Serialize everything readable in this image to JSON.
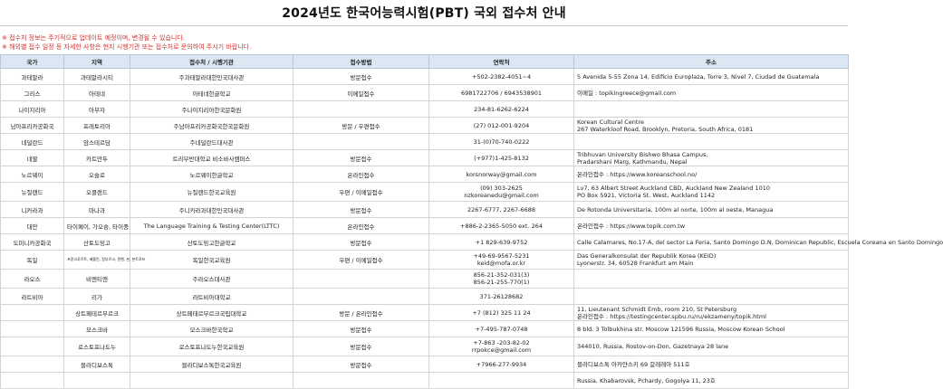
{
  "title": "2024년도 한국어능력시험(PBT) 국외 접수처 안내",
  "notes": [
    "※ 접수처 정보는 주기적으로 업데이트 예정이며, 변경될 수 있습니다.",
    "※ 해외별 접수 일정 등 자세한 사항은 현지 시행기관 또는 접수처로 문의하여 주시기 바랍니다."
  ],
  "columns": [
    "국가",
    "지역",
    "접수처 / 시행기관",
    "접수방법",
    "연락처",
    "주소"
  ],
  "rows": [
    {
      "country": "과테말라",
      "region": "과테말라시티",
      "agency": "주과테말라대한민국대사관",
      "method": "방문접수",
      "contact": [
        "+502-2382-4051~4"
      ],
      "address": [
        "5 Avenida 5-55 Zona 14, Edificio Europlaza, Torre 3, Nivel 7, Ciudad de Guatemala"
      ]
    },
    {
      "country": "그리스",
      "region": "아테네",
      "agency": "아테네한글학교",
      "method": "이메일접수",
      "contact": [
        "6981722706 / 6943538901"
      ],
      "address": [
        "이메일 : topikingreece@gmail.com"
      ]
    },
    {
      "country": "나이지리아",
      "region": "아부자",
      "agency": "주나이지리아한국문화원",
      "method": "",
      "contact": [
        "234-81-6262-6224"
      ],
      "address": [
        ""
      ]
    },
    {
      "country": "남아프리카공화국",
      "region": "프레토리아",
      "agency": "주남아프리카공화국한국문화원",
      "method": "방문 / 우편접수",
      "contact": [
        "(27) 012-001-9204"
      ],
      "address": [
        "Korean Cultural Centre",
        "267 Waterkloof Road, Brooklyn, Pretoria, South Africa, 0181"
      ]
    },
    {
      "country": "네덜란드",
      "region": "암스테르담",
      "agency": "주네덜란드대사관",
      "method": "",
      "contact": [
        "31-(0)70-740-0222"
      ],
      "address": [
        ""
      ]
    },
    {
      "country": "네팔",
      "region": "카트만두",
      "agency": "트리부반대학교 비소바사캠퍼스",
      "method": "방문접수",
      "contact": [
        "(+977)1-425-8132"
      ],
      "address": [
        "Tribhuvan University Bishwo Bhasa Campus,",
        "Pradarshani Marg, Kathmandu, Nepal"
      ]
    },
    {
      "country": "노르웨이",
      "region": "오슬로",
      "agency": "노르웨이한글학교",
      "method": "온라인접수",
      "contact": [
        "korsnorway@gmail.com"
      ],
      "address": [
        "온라인접수 : https://www.koreanschool.no/"
      ]
    },
    {
      "country": "뉴질랜드",
      "region": "오클랜드",
      "agency": "뉴질랜드한국교육원",
      "method": "우편 / 이메일접수",
      "contact": [
        "(09) 303-2625",
        "nzkoreanedu@gmail.com"
      ],
      "address": [
        "Lv7, 63 Albert Street Auckland CBD, Auckland New Zealand 1010",
        "PO Box 5921, Victoria St. West, Auckland 1142"
      ]
    },
    {
      "country": "니카라과",
      "region": "마나과",
      "agency": "주니카라과대한민국대사관",
      "method": "방문접수",
      "contact": [
        "2267-6777, 2267-6688"
      ],
      "address": [
        "De Rotonda Universitaria, 100m al norte, 100m al oeste, Managua"
      ]
    },
    {
      "country": "대만",
      "region": "타이페이, 가오슝, 타이중",
      "agency": "The Language Training & Testing Center(LTTC)",
      "method": "온라인접수",
      "contact": [
        "+886-2-2365-5050 ext. 264"
      ],
      "address": [
        "온라인접수 : https://www.topik.com.tw"
      ]
    },
    {
      "country": "도미니카공화국",
      "region": "산토도밍고",
      "agency": "산토도밍고한글학교",
      "method": "방문접수",
      "contact": [
        "+1 829-639-9752"
      ],
      "address": [
        "Calle Calamares, No.17-A, del sector La Feria, Santo Domingo D.N, Dominican Republic, Escuela Coreana en Santo Domingo"
      ]
    },
    {
      "country": "독일",
      "region": "프랑크푸르트, 베를린, 함부르크, 뮌헨, 본, 본트로프",
      "agency": "독일한국교육원",
      "method": "우편 / 이메일접수",
      "contact": [
        "+49-69-9567-5231",
        "keid@mofa.or.kr"
      ],
      "address": [
        "Das Generalkonsulat der Republik Korea (KEID)",
        "Lyonerstr. 34, 60528 Frankfurt am Main"
      ]
    },
    {
      "country": "라오스",
      "region": "비엔티엔",
      "agency": "주라오스대사관",
      "method": "",
      "contact": [
        "856-21-352-031(3)",
        "856-21-255-770(1)"
      ],
      "address": [
        ""
      ]
    },
    {
      "country": "라트비아",
      "region": "리가",
      "agency": "라트비아대학교",
      "method": "",
      "contact": [
        "371-26128682"
      ],
      "address": [
        ""
      ]
    },
    {
      "country": "",
      "region": "상트페테르부르크",
      "agency": "상트페테르부르크국립대학교",
      "method": "방문 / 온라인접수",
      "contact": [
        "+7 (812) 325 11 24"
      ],
      "address": [
        "11, Lieutenant Schmidt Emb, room 210, St Petersburg",
        "온라인접수 : https://testingcenter.spbu.ru/ru/ekzameny/topik.html"
      ]
    },
    {
      "country": "",
      "region": "모스크바",
      "agency": "모스크바한국학교",
      "method": "방문접수",
      "contact": [
        "+7-495-787-0748"
      ],
      "address": [
        "8 bld. 3 Tolbukhina str. Moscow 121596 Russia, Moscow Korean School"
      ]
    },
    {
      "country": "",
      "region": "로스토프나도누",
      "agency": "로스토프나도누한국교육원",
      "method": "방문접수",
      "contact": [
        "+7-863 -203-82-02",
        "rrpokce@gmail.com"
      ],
      "address": [
        "344010, Russia, Rostov-on-Don, Gazetnaya 28 lane"
      ]
    },
    {
      "country": "",
      "region": "블라디보스톡",
      "agency": "블라디보스톡한국교육원",
      "method": "방문접수",
      "contact": [
        "+7966-277-9934"
      ],
      "address": [
        "블라디보스톡 아카얀스키 69 갈레레아 511호"
      ]
    },
    {
      "country": "",
      "region": "",
      "agency": "",
      "method": "",
      "contact": [
        ""
      ],
      "address": [
        "Russia, Khabarovsk, Pchardy, Gogolya 11, 23호"
      ]
    }
  ],
  "colors": {
    "header_bg": "#dbe7f3",
    "note_red": "#d32f2f",
    "border": "#d4d4d4"
  }
}
